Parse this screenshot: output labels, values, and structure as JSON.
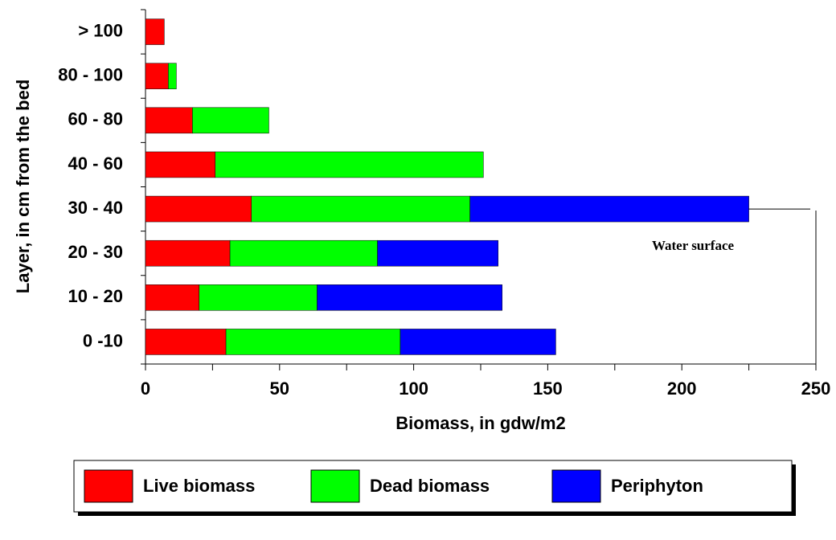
{
  "chart_data": {
    "type": "barh_stacked",
    "xlabel": "Biomass, in gdw/m2",
    "ylabel": "Layer, in cm from the bed",
    "annotation": "Water surface",
    "categories": [
      "0 -10",
      "10 - 20",
      "20 - 30",
      "30 - 40",
      "40 - 60",
      "60 - 80",
      "80 - 100",
      "> 100"
    ],
    "series": [
      {
        "name": "Live biomass",
        "color": "#ff0000",
        "values": [
          30,
          20,
          31.5,
          39.5,
          26,
          17.5,
          8.5,
          7
        ]
      },
      {
        "name": "Dead biomass",
        "color": "#00ff00",
        "values": [
          65,
          44,
          55,
          81.5,
          100,
          28.5,
          3,
          null
        ]
      },
      {
        "name": "Periphyton",
        "color": "#0000ff",
        "values": [
          58,
          69,
          45,
          104,
          null,
          null,
          null,
          null
        ]
      }
    ],
    "xlim": [
      0,
      250
    ],
    "xticks": [
      0,
      50,
      100,
      150,
      200,
      250
    ]
  }
}
